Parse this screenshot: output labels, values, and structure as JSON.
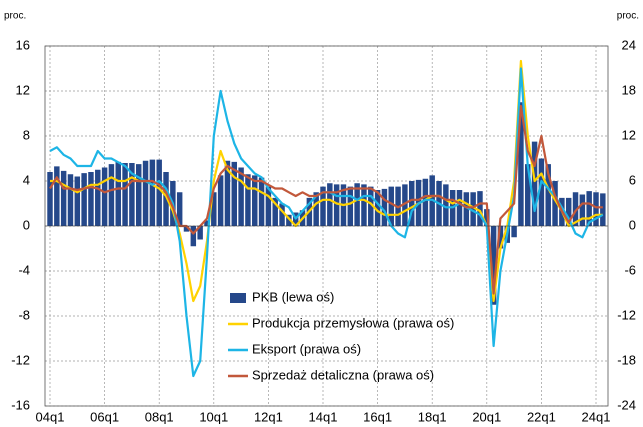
{
  "chart_data": {
    "type": "bar_line",
    "y_unit_left": "proc.",
    "y_unit_right": "proc.",
    "categories": [
      "04q1",
      null,
      null,
      null,
      null,
      null,
      null,
      null,
      "06q1",
      null,
      null,
      null,
      null,
      null,
      null,
      null,
      "08q1",
      null,
      null,
      null,
      null,
      null,
      null,
      null,
      "10q1",
      null,
      null,
      null,
      null,
      null,
      null,
      null,
      "12q1",
      null,
      null,
      null,
      null,
      null,
      null,
      null,
      "14q1",
      null,
      null,
      null,
      null,
      null,
      null,
      null,
      "16q1",
      null,
      null,
      null,
      null,
      null,
      null,
      null,
      "18q1",
      null,
      null,
      null,
      null,
      null,
      null,
      null,
      "20q1",
      null,
      null,
      null,
      null,
      null,
      null,
      null,
      "22q1",
      null,
      null,
      null,
      null,
      null,
      null,
      null,
      "24q1",
      null
    ],
    "ylim": [
      -16,
      16
    ],
    "yticks": [
      -16,
      -12,
      -8,
      -4,
      0,
      4,
      8,
      12,
      16
    ],
    "y2lim": [
      -24,
      24
    ],
    "y2ticks": [
      -24,
      -18,
      -12,
      -6,
      0,
      6,
      12,
      18,
      24
    ],
    "grid": true,
    "series": [
      {
        "name": "PKB (lewa oś)",
        "kind": "bar",
        "axis": "y",
        "color": "#25488a",
        "values": [
          4.8,
          5.3,
          4.9,
          4.6,
          4.4,
          4.7,
          4.8,
          5.0,
          5.2,
          5.5,
          5.7,
          5.6,
          5.6,
          5.5,
          5.8,
          5.9,
          5.9,
          4.8,
          4.0,
          3.0,
          -0.5,
          -1.8,
          -1.2,
          0.5,
          3.0,
          4.5,
          5.8,
          5.7,
          5.2,
          4.6,
          4.5,
          4.3,
          3.5,
          2.5,
          2.0,
          1.0,
          1.2,
          1.4,
          2.5,
          3.0,
          3.5,
          3.8,
          3.7,
          3.7,
          3.5,
          3.8,
          3.7,
          3.5,
          3.2,
          3.3,
          3.5,
          3.5,
          3.7,
          4.0,
          4.1,
          4.2,
          4.5,
          4.0,
          3.7,
          3.2,
          3.2,
          3.0,
          3.0,
          3.1,
          1.5,
          -7.0,
          -2.0,
          -1.5,
          -1.0,
          11.0,
          5.5,
          7.5,
          6.0,
          5.5,
          4.0,
          2.5,
          2.5,
          3.0,
          2.8,
          3.1,
          3.0,
          2.9
        ]
      },
      {
        "name": "Produkcja przemysłowa (prawa oś)",
        "kind": "line",
        "axis": "y2",
        "color": "#ffd200",
        "values": [
          6,
          6,
          5.5,
          5,
          4.5,
          5,
          5.5,
          5.5,
          6,
          6.5,
          6,
          6,
          6.5,
          6,
          6,
          5.5,
          5,
          4,
          2,
          -1,
          -5,
          -10,
          -8,
          -2,
          6,
          10,
          7.5,
          6.5,
          6,
          5,
          5,
          4.5,
          4,
          3,
          2,
          1,
          0,
          1,
          2,
          3,
          3.5,
          3.5,
          3,
          2.8,
          3,
          3.5,
          3.5,
          3,
          2,
          1.5,
          1.5,
          1.5,
          2,
          2.5,
          3,
          3.5,
          4,
          4,
          3.5,
          3,
          3.5,
          3,
          2.5,
          2,
          0,
          -10,
          -3,
          0,
          6,
          22,
          12,
          6,
          7,
          5,
          3.5,
          2,
          0,
          0.5,
          1,
          1,
          1.5,
          1.5
        ]
      },
      {
        "name": "Eksport (prawa oś)",
        "kind": "line",
        "axis": "y2",
        "color": "#1db5e6",
        "values": [
          10,
          10.5,
          9.5,
          9,
          8,
          8,
          8,
          10,
          9,
          9,
          8.5,
          8,
          7,
          6.5,
          6,
          5.5,
          6,
          5,
          3,
          -2,
          -12,
          -20,
          -18,
          -4,
          12,
          18,
          14,
          11,
          9,
          8,
          7,
          6.5,
          5,
          4,
          3,
          2.5,
          1,
          2,
          3,
          4,
          4.5,
          4.5,
          4,
          4,
          4,
          3.5,
          4,
          4,
          3,
          2,
          0,
          -1,
          -1.5,
          2,
          3,
          3.5,
          3.5,
          3,
          2.5,
          2.5,
          3,
          2.5,
          2,
          1.5,
          0,
          -16,
          -6,
          -1,
          4,
          21,
          8,
          2,
          6,
          5,
          4,
          2.5,
          1,
          -1,
          -1.5,
          0.5,
          1,
          1.5
        ]
      },
      {
        "name": "Sprzedaż detaliczna (prawa oś)",
        "kind": "line",
        "axis": "y2",
        "color": "#c2583b",
        "values": [
          5,
          6.5,
          5,
          5,
          4.8,
          5,
          5.2,
          5,
          4.5,
          4.8,
          5,
          5,
          6,
          6,
          6,
          6,
          5.5,
          4.5,
          2.5,
          0,
          0,
          -1,
          0,
          1,
          5,
          7,
          8,
          7.5,
          7,
          6.5,
          6,
          6,
          5.5,
          5,
          5,
          4.5,
          4,
          4.5,
          4,
          4,
          4.5,
          4.5,
          4.5,
          4.8,
          5,
          5,
          5,
          5,
          4.5,
          3.5,
          3,
          2.5,
          3,
          3.5,
          3.5,
          4,
          4,
          4,
          3.5,
          3.5,
          3,
          2.5,
          2.5,
          3,
          3,
          -9,
          1,
          2,
          3,
          16,
          10,
          8,
          12,
          7,
          4,
          2,
          0.5,
          2,
          3,
          3,
          2.5,
          2.5
        ]
      }
    ]
  }
}
